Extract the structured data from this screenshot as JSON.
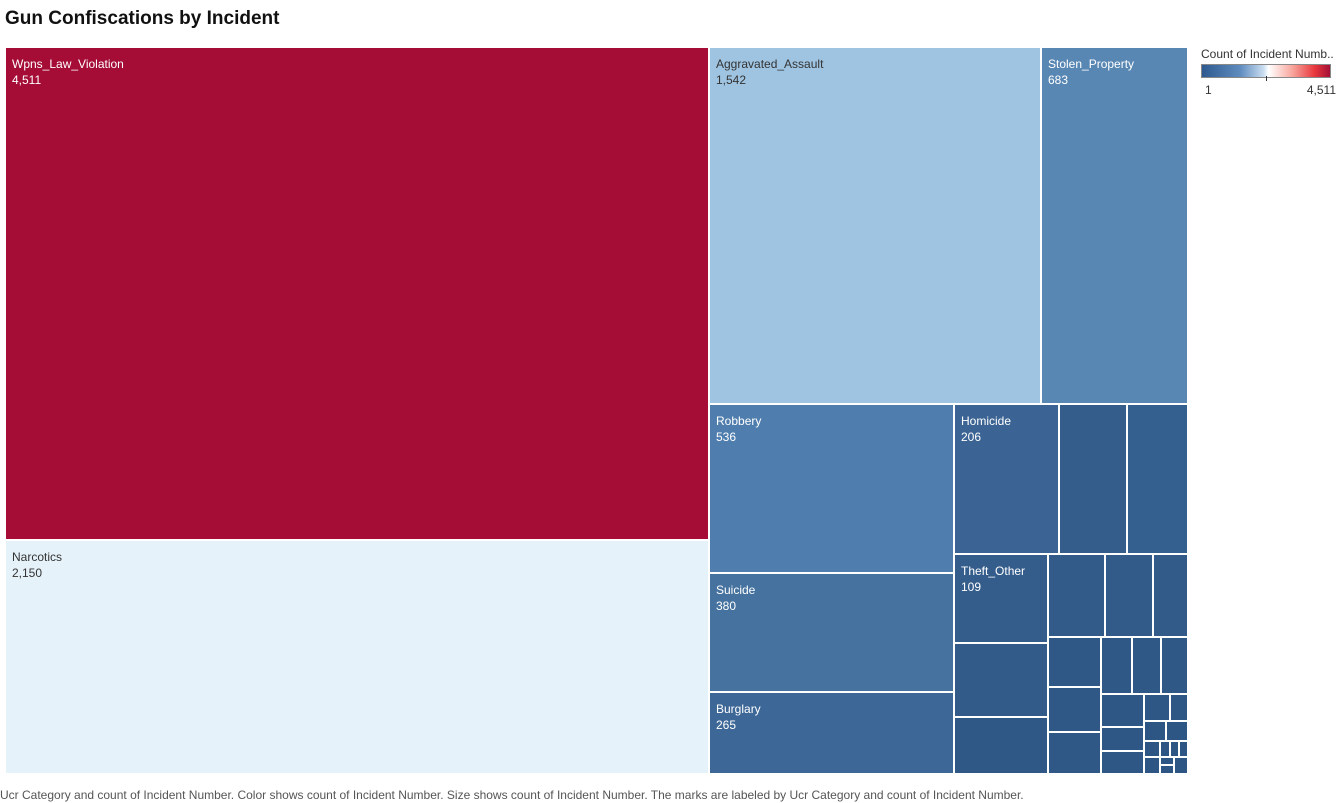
{
  "title": "Gun Confiscations by Incident",
  "legend": {
    "title": "Count of Incident Numb..",
    "min": "1",
    "max": "4,511"
  },
  "caption": "Ucr Category and count of Incident Number.  Color shows count of Incident Number.  Size shows count of Incident Number.  The marks are labeled by Ucr Category and count of Incident Number.",
  "chart_data": {
    "type": "treemap",
    "measure": "count of Incident Number",
    "color_range": [
      1,
      4511
    ],
    "items": [
      {
        "category": "Wpns_Law_Violation",
        "value": 4511,
        "label": "4,511",
        "color": "#a50d37"
      },
      {
        "category": "Narcotics",
        "value": 2150,
        "label": "2,150",
        "color": "#e6f2fa"
      },
      {
        "category": "Aggravated_Assault",
        "value": 1542,
        "label": "1,542",
        "color": "#9fc4e1"
      },
      {
        "category": "Stolen_Property",
        "value": 683,
        "label": "683",
        "color": "#5987b4"
      },
      {
        "category": "Robbery",
        "value": 536,
        "label": "536",
        "color": "#4f7eae"
      },
      {
        "category": "Suicide",
        "value": 380,
        "label": "380",
        "color": "#46729f"
      },
      {
        "category": "Burglary",
        "value": 265,
        "label": "265",
        "color": "#3d6797"
      },
      {
        "category": "Homicide",
        "value": 206,
        "label": "206",
        "color": "#3b6494"
      },
      {
        "category": "Theft_Other",
        "value": 109,
        "label": "109",
        "color": "#345d8c"
      }
    ]
  }
}
